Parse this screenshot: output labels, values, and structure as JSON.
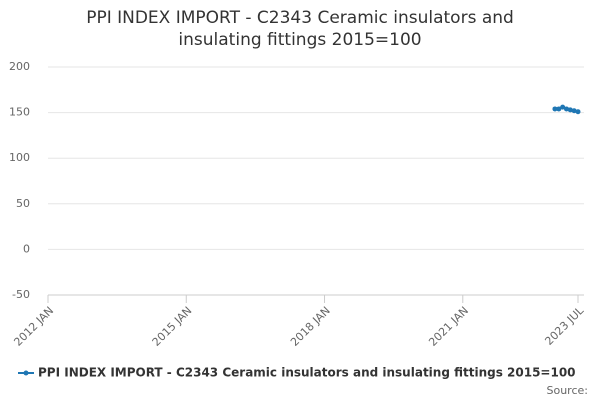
{
  "chart_data": {
    "type": "line",
    "title": [
      "PPI INDEX IMPORT - C2343 Ceramic insulators and",
      "insulating fittings 2015=100"
    ],
    "x": [
      "2023 JAN",
      "2023 FEB",
      "2023 MAR",
      "2023 APR",
      "2023 MAY",
      "2023 JUN",
      "2023 JUL"
    ],
    "series": [
      {
        "name": "PPI INDEX IMPORT - C2343 Ceramic insulators and insulating fittings 2015=100",
        "color": "#1f77b4",
        "values": [
          154,
          154,
          156,
          154,
          153,
          152,
          151
        ]
      }
    ],
    "xlim": [
      "2012 JAN",
      "2023 JUL"
    ],
    "xticks": [
      "2012 JAN",
      "2015 JAN",
      "2018 JAN",
      "2021 JAN",
      "2023 JUL"
    ],
    "ylim": [
      -50,
      200
    ],
    "yticks": [
      -50,
      0,
      50,
      100,
      150,
      200
    ],
    "grid": true,
    "source": "Source:"
  }
}
